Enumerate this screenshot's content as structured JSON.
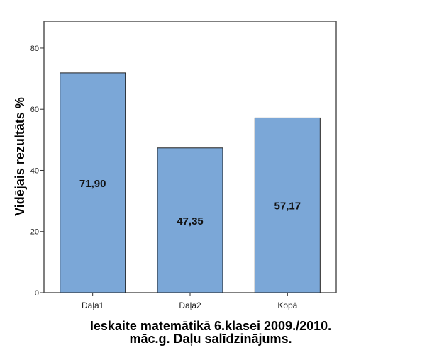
{
  "chart_data": {
    "type": "bar",
    "title": [
      "Ieskaite matemātikā 6.klasei 2009./2010.",
      "māc.g. Daļu salīdzinājums."
    ],
    "xlabel": "",
    "ylabel": "Vidējais rezultāts %",
    "categories": [
      "Daļa1",
      "Daļa2",
      "Kopā"
    ],
    "values": [
      71.9,
      47.35,
      57.17
    ],
    "data_labels": [
      "71,90",
      "47,35",
      "57,17"
    ],
    "yticks": [
      0,
      20,
      40,
      60,
      80
    ],
    "ylim": [
      0,
      88.8
    ],
    "grid": false,
    "bar_color": "#7ba7d7"
  }
}
